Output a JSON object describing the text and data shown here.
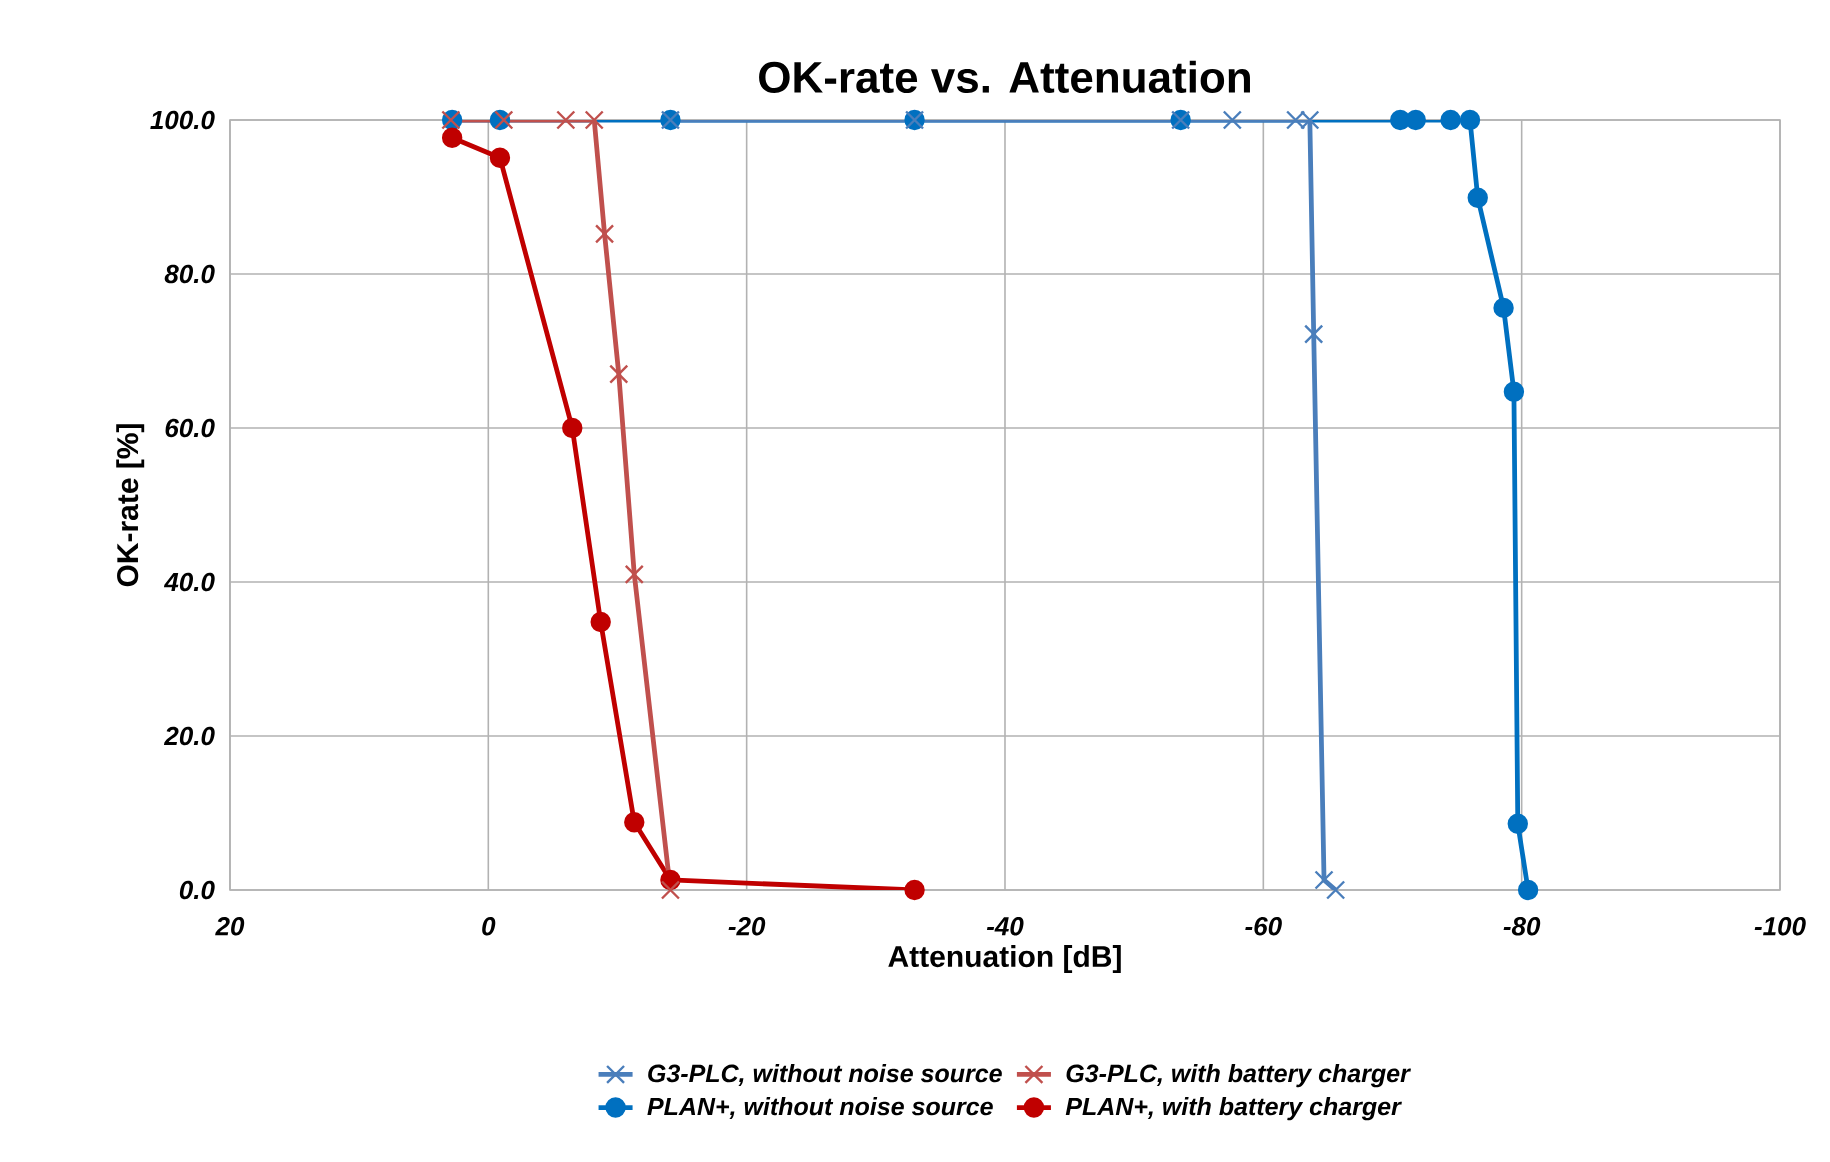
{
  "chart_data": {
    "type": "line",
    "title": "OK-rate vs. Attenuation",
    "xlabel": "Attenuation [dB]",
    "ylabel": "OK-rate [%]",
    "xlim": [
      20,
      -100
    ],
    "xticks": [
      20,
      0,
      -20,
      -40,
      -60,
      -80,
      -100
    ],
    "ylim": [
      0,
      100
    ],
    "yticks": [
      {
        "value": 0,
        "label": "0.0"
      },
      {
        "value": 20,
        "label": "20.0"
      },
      {
        "value": 40,
        "label": "40.0"
      },
      {
        "value": 60,
        "label": "60.0"
      },
      {
        "value": 80,
        "label": "80.0"
      },
      {
        "value": 100,
        "label": "100.0"
      }
    ],
    "grid": true,
    "legend": "bottom",
    "line_style": "solid",
    "series": [
      {
        "name": "G3-PLC, without noise source",
        "color": "#4a7ebb",
        "marker": "cross",
        "x": [
          -14.1,
          -33,
          -53.6,
          -57.6,
          -62.5,
          -63.6,
          -63.9,
          -64.7,
          -65.6
        ],
        "values": [
          100,
          100,
          100,
          100,
          100,
          100,
          72.2,
          1.3,
          0
        ]
      },
      {
        "name": "G3-PLC, with battery charger",
        "color": "#c0504d",
        "marker": "cross",
        "x": [
          2.9,
          -1.2,
          -6,
          -8.2,
          -9,
          -10.1,
          -11.3,
          -14.1
        ],
        "values": [
          100,
          100,
          100,
          100,
          85.2,
          67,
          41,
          0
        ]
      },
      {
        "name": "PLAN+, without noise source",
        "color": "#0070c0",
        "marker": "circle",
        "x": [
          2.8,
          -0.9,
          -14.1,
          -33,
          -53.6,
          -70.6,
          -71.8,
          -74.5,
          -76,
          -76.6,
          -78.6,
          -79.4,
          -79.7,
          -80.5
        ],
        "values": [
          100,
          100,
          100,
          100,
          100,
          100,
          100,
          100,
          100,
          89.9,
          75.6,
          64.7,
          8.6,
          0
        ]
      },
      {
        "name": "PLAN+, with battery charger",
        "color": "#c00000",
        "marker": "circle",
        "x": [
          2.8,
          -0.9,
          -6.5,
          -8.7,
          -11.3,
          -14.1,
          -33
        ],
        "values": [
          97.7,
          95.1,
          60,
          34.8,
          8.8,
          1.3,
          0
        ]
      }
    ]
  }
}
